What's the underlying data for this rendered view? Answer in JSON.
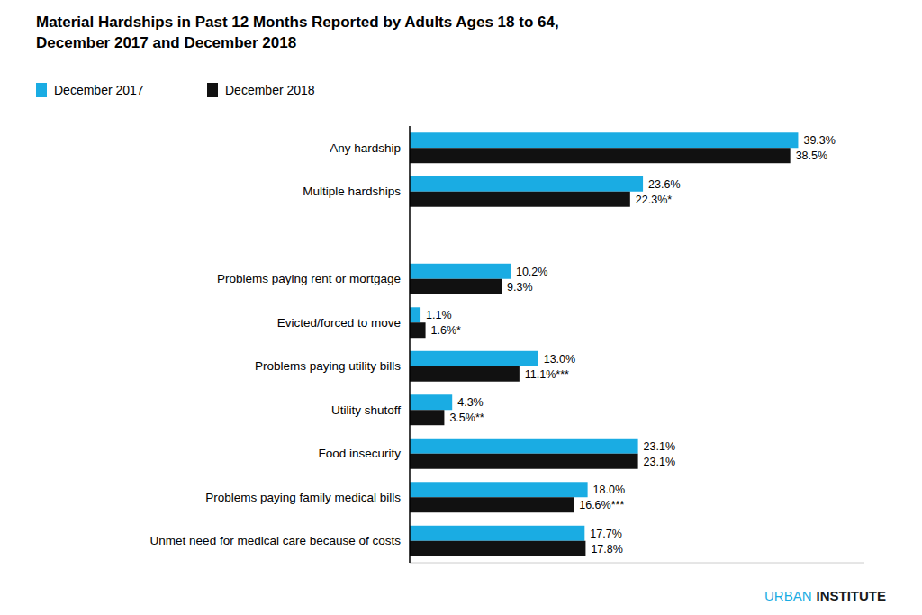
{
  "chart_data": {
    "type": "bar",
    "orientation": "horizontal",
    "title": "Material Hardships in Past 12 Months Reported by Adults Ages 18 to 64,",
    "subtitle": "December 2017 and December 2018",
    "categories": [
      "Any hardship",
      "Multiple hardships",
      null,
      "Problems paying rent or mortgage",
      "Evicted/forced to move",
      "Problems paying utility bills",
      "Utility shutoff",
      "Food insecurity",
      "Problems paying family medical bills",
      "Unmet need for medical care because of costs"
    ],
    "series": [
      {
        "name": "December 2017",
        "color": "#1aace3",
        "values": [
          39.3,
          23.6,
          null,
          10.2,
          1.1,
          13.0,
          4.3,
          23.1,
          18.0,
          17.7
        ],
        "value_labels": [
          "39.3%",
          "23.6%",
          null,
          "10.2%",
          "1.1%",
          "13.0%",
          "4.3%",
          "23.1%",
          "18.0%",
          "17.7%"
        ]
      },
      {
        "name": "December 2018",
        "color": "#111111",
        "values": [
          38.5,
          22.3,
          null,
          9.3,
          1.6,
          11.1,
          3.5,
          23.1,
          16.6,
          17.8
        ],
        "value_labels": [
          "38.5%",
          "22.3%*",
          null,
          "9.3%",
          "1.6%*",
          "11.1%***",
          "3.5%**",
          "23.1%",
          "16.6%***",
          "17.8%"
        ]
      }
    ],
    "xlim": [
      0,
      46
    ],
    "xticks": [],
    "tick_labels": false,
    "data_labels": true,
    "legend": "upper left",
    "grid": false,
    "annotations": [
      "URBAN",
      "INSTITUTE"
    ]
  }
}
